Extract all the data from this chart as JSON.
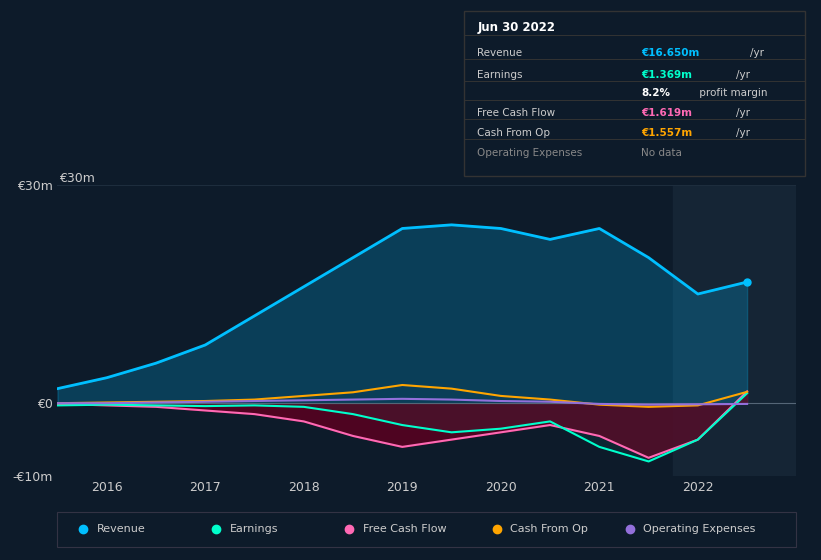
{
  "background_color": "#0d1b2a",
  "chart_bg": "#0d1b2a",
  "grid_color": "#1e2e3e",
  "text_color": "#cccccc",
  "title_color": "#ffffff",
  "years": [
    2015.5,
    2016.0,
    2016.5,
    2017.0,
    2017.5,
    2018.0,
    2018.5,
    2019.0,
    2019.5,
    2020.0,
    2020.5,
    2021.0,
    2021.5,
    2022.0,
    2022.5
  ],
  "revenue": [
    2.0,
    3.5,
    5.5,
    8.0,
    12.0,
    16.0,
    20.0,
    24.0,
    24.5,
    24.0,
    22.5,
    24.0,
    20.0,
    15.0,
    16.65
  ],
  "earnings": [
    -0.3,
    -0.2,
    -0.3,
    -0.4,
    -0.3,
    -0.5,
    -1.5,
    -3.0,
    -4.0,
    -3.5,
    -2.5,
    -6.0,
    -8.0,
    -5.0,
    1.37
  ],
  "free_cash_flow": [
    -0.1,
    -0.3,
    -0.5,
    -1.0,
    -1.5,
    -2.5,
    -4.5,
    -6.0,
    -5.0,
    -4.0,
    -3.0,
    -4.5,
    -7.5,
    -5.0,
    1.62
  ],
  "cash_from_op": [
    0.0,
    0.1,
    0.2,
    0.3,
    0.5,
    1.0,
    1.5,
    2.5,
    2.0,
    1.0,
    0.5,
    -0.2,
    -0.5,
    -0.3,
    1.56
  ],
  "operating_expenses": [
    0.0,
    0.0,
    0.1,
    0.2,
    0.3,
    0.4,
    0.5,
    0.6,
    0.5,
    0.3,
    0.2,
    -0.1,
    -0.2,
    -0.15,
    -0.1
  ],
  "revenue_color": "#00bfff",
  "earnings_color": "#00ffcc",
  "free_cash_flow_color": "#ff69b4",
  "cash_from_op_color": "#ffa500",
  "operating_expenses_color": "#9370db",
  "highlight_x_start": 2021.75,
  "highlight_x_end": 2023.0,
  "ylim": [
    -10,
    30
  ],
  "yticks": [
    -10,
    0,
    30
  ],
  "ytick_labels": [
    "-€10m",
    "€0",
    "€30m"
  ],
  "xticks": [
    2016,
    2017,
    2018,
    2019,
    2020,
    2021,
    2022
  ],
  "xlim": [
    2015.5,
    2023.0
  ],
  "info_box": {
    "date": "Jun 30 2022",
    "rows": [
      {
        "label": "Revenue",
        "value": "€16.650m",
        "unit": "/yr",
        "value_color": "#00bfff",
        "label_color": "#cccccc"
      },
      {
        "label": "Earnings",
        "value": "€1.369m",
        "unit": "/yr",
        "value_color": "#00ffcc",
        "label_color": "#cccccc"
      },
      {
        "label": "",
        "value": "8.2%",
        "unit": " profit margin",
        "value_color": "#ffffff",
        "label_color": "#cccccc"
      },
      {
        "label": "Free Cash Flow",
        "value": "€1.619m",
        "unit": "/yr",
        "value_color": "#ff69b4",
        "label_color": "#cccccc"
      },
      {
        "label": "Cash From Op",
        "value": "€1.557m",
        "unit": "/yr",
        "value_color": "#ffa500",
        "label_color": "#cccccc"
      },
      {
        "label": "Operating Expenses",
        "value": "No data",
        "unit": "",
        "value_color": "#888888",
        "label_color": "#888888"
      }
    ]
  },
  "legend_items": [
    {
      "label": "Revenue",
      "color": "#00bfff"
    },
    {
      "label": "Earnings",
      "color": "#00ffcc"
    },
    {
      "label": "Free Cash Flow",
      "color": "#ff69b4"
    },
    {
      "label": "Cash From Op",
      "color": "#ffa500"
    },
    {
      "label": "Operating Expenses",
      "color": "#9370db"
    }
  ]
}
